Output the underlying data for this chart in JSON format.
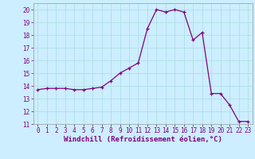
{
  "x": [
    0,
    1,
    2,
    3,
    4,
    5,
    6,
    7,
    8,
    9,
    10,
    11,
    12,
    13,
    14,
    15,
    16,
    17,
    18,
    19,
    20,
    21,
    22,
    23
  ],
  "y": [
    13.7,
    13.8,
    13.8,
    13.8,
    13.7,
    13.7,
    13.8,
    13.9,
    14.4,
    15.0,
    15.4,
    15.8,
    18.5,
    20.0,
    19.8,
    20.0,
    19.8,
    17.6,
    18.2,
    13.4,
    13.4,
    12.5,
    11.2,
    11.2
  ],
  "line_color": "#800080",
  "marker": "+",
  "marker_size": 3,
  "bg_color": "#cceeff",
  "grid_color": "#aadddd",
  "xlabel": "Windchill (Refroidissement éolien,°C)",
  "xlim": [
    -0.5,
    23.5
  ],
  "ylim": [
    11,
    20.5
  ],
  "yticks": [
    11,
    12,
    13,
    14,
    15,
    16,
    17,
    18,
    19,
    20
  ],
  "xticks": [
    0,
    1,
    2,
    3,
    4,
    5,
    6,
    7,
    8,
    9,
    10,
    11,
    12,
    13,
    14,
    15,
    16,
    17,
    18,
    19,
    20,
    21,
    22,
    23
  ],
  "tick_label_fontsize": 5.5,
  "xlabel_fontsize": 6.5,
  "line_width": 0.9,
  "marker_edge_width": 0.9
}
